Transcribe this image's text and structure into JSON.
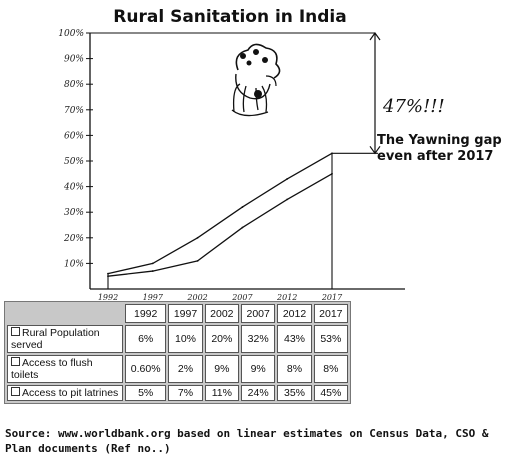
{
  "chart_data": {
    "type": "line",
    "title": "Rural Sanitation in India",
    "x": [
      "1992",
      "1997",
      "2002",
      "2007",
      "2012",
      "2017"
    ],
    "y_ticks": [
      "10%",
      "20%",
      "30%",
      "40%",
      "50%",
      "60%",
      "70%",
      "80%",
      "90%",
      "100%"
    ],
    "ylim": [
      0,
      100
    ],
    "series": [
      {
        "values": [
          6,
          10,
          20,
          32,
          43,
          53
        ],
        "color": "#111111"
      },
      {
        "values": [
          5,
          7,
          11,
          24,
          35,
          45
        ],
        "color": "#111111"
      }
    ],
    "gap_value_label": "47%!!!",
    "annotation": "The Yawning gap even after 2017",
    "decoration": "hand-drawn-face-palm-icon",
    "grid": false,
    "legend": "none"
  },
  "table": {
    "headers": [
      "",
      "1992",
      "1997",
      "2002",
      "2007",
      "2012",
      "2017"
    ],
    "rows": [
      {
        "label": "Rural Population served",
        "cells": [
          "6%",
          "10%",
          "20%",
          "32%",
          "43%",
          "53%"
        ]
      },
      {
        "label": "Access to flush toilets",
        "cells": [
          "0.60%",
          "2%",
          "9%",
          "9%",
          "8%",
          "8%"
        ]
      },
      {
        "label": "Access to pit latrines",
        "cells": [
          "5%",
          "7%",
          "11%",
          "24%",
          "35%",
          "45%"
        ]
      }
    ]
  },
  "source": "Source: www.worldbank.org based on linear estimates on Census Data, CSO & Plan documents (Ref no..)"
}
